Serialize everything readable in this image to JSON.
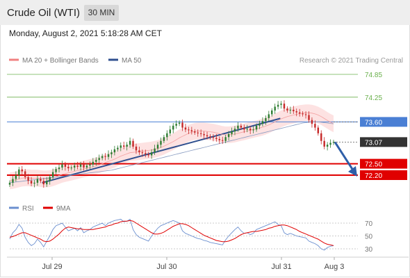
{
  "header": {
    "title": "Crude Oil (WTI)",
    "timeframe": "30 MIN"
  },
  "timestamp": "Monday, August 2, 2021 5:18:28 AM CET",
  "legend": {
    "ma20_label": "MA 20 + Bollinger Bands",
    "ma50_label": "MA 50",
    "ma20_color": "#f08080",
    "ma50_color": "#2f4f8f"
  },
  "credit": "Research © 2021 Trading Central",
  "rsi_legend": {
    "rsi_label": "RSI",
    "ma9_label": "9MA",
    "rsi_color": "#6b8fcf",
    "ma9_color": "#e00000"
  },
  "colors": {
    "resistance": "#6ab04c",
    "support": "#e00000",
    "pivot": "#4a7fd4",
    "price_box": "#333333",
    "up_candle": "#2e7d32",
    "down_candle": "#c62828"
  },
  "chart_data": [
    {
      "type": "candlestick",
      "title": "Crude Oil (WTI)",
      "timeframe": "30 MIN",
      "x_tick_labels": [
        "Jul 29",
        "Jul 30",
        "Jul 31",
        "Aug 3"
      ],
      "ylim": [
        71.9,
        75.05
      ],
      "last_price": 73.07,
      "levels": [
        {
          "value": 74.85,
          "kind": "resistance",
          "label": "74.85"
        },
        {
          "value": 74.25,
          "kind": "resistance",
          "label": "74.25"
        },
        {
          "value": 73.6,
          "kind": "pivot",
          "label": "73.60"
        },
        {
          "value": 73.07,
          "kind": "last",
          "label": "73.07"
        },
        {
          "value": 72.5,
          "kind": "support",
          "label": "72.50"
        },
        {
          "value": 72.2,
          "kind": "support",
          "label": "72.20"
        }
      ],
      "close": [
        72.0,
        72.1,
        72.2,
        72.35,
        72.3,
        72.15,
        72.05,
        71.98,
        72.0,
        72.1,
        72.05,
        71.96,
        72.05,
        72.15,
        72.28,
        72.36,
        72.4,
        72.48,
        72.42,
        72.38,
        72.4,
        72.45,
        72.42,
        72.48,
        72.4,
        72.45,
        72.48,
        72.55,
        72.6,
        72.65,
        72.7,
        72.68,
        72.75,
        72.8,
        72.88,
        72.92,
        72.98,
        72.95,
        73.0,
        73.1,
        72.95,
        72.85,
        72.8,
        72.78,
        72.75,
        72.72,
        72.8,
        72.9,
        73.0,
        73.1,
        73.2,
        73.3,
        73.4,
        73.5,
        73.55,
        73.58,
        73.45,
        73.4,
        73.38,
        73.35,
        73.32,
        73.3,
        73.28,
        73.25,
        73.22,
        73.2,
        73.18,
        73.15,
        73.12,
        73.1,
        73.2,
        73.28,
        73.35,
        73.42,
        73.5,
        73.45,
        73.4,
        73.42,
        73.38,
        73.4,
        73.5,
        73.55,
        73.62,
        73.7,
        73.8,
        73.9,
        74.0,
        74.05,
        74.08,
        73.95,
        73.9,
        73.92,
        73.88,
        73.85,
        73.82,
        73.8,
        73.78,
        73.65,
        73.55,
        73.45,
        73.3,
        73.1,
        72.95,
        73.0,
        73.05,
        73.07
      ],
      "series": [
        {
          "name": "MA 20",
          "values": [
            72.05,
            72.06,
            72.08,
            72.1,
            72.12,
            72.13,
            72.13,
            72.12,
            72.12,
            72.12,
            72.11,
            72.1,
            72.1,
            72.11,
            72.13,
            72.16,
            72.19,
            72.22,
            72.24,
            72.26,
            72.28,
            72.3,
            72.32,
            72.34,
            72.36,
            72.38,
            72.4,
            72.42,
            72.44,
            72.47,
            72.5,
            72.53,
            72.56,
            72.59,
            72.62,
            72.66,
            72.7,
            72.73,
            72.76,
            72.79,
            72.8,
            72.81,
            72.82,
            72.83,
            72.84,
            72.85,
            72.86,
            72.88,
            72.9,
            72.93,
            72.96,
            73.0,
            73.04,
            73.08,
            73.13,
            73.18,
            73.22,
            73.26,
            73.3,
            73.33,
            73.35,
            73.36,
            73.36,
            73.36,
            73.35,
            73.34,
            73.33,
            73.31,
            73.29,
            73.27,
            73.26,
            73.26,
            73.27,
            73.28,
            73.3,
            73.32,
            73.34,
            73.36,
            73.38,
            73.4,
            73.42,
            73.44,
            73.46,
            73.49,
            73.52,
            73.56,
            73.6,
            73.64,
            73.68,
            73.71,
            73.74,
            73.76,
            73.78,
            73.8,
            73.82,
            73.83,
            73.84,
            73.84,
            73.83,
            73.81,
            73.78,
            73.74,
            73.69,
            73.64,
            73.59,
            73.55
          ]
        },
        {
          "name": "MA 50",
          "values": [
            72.0,
            72.01,
            72.02,
            72.03,
            72.04,
            72.05,
            72.06,
            72.07,
            72.08,
            72.09,
            72.1,
            72.11,
            72.12,
            72.13,
            72.14,
            72.15,
            72.16,
            72.17,
            72.18,
            72.19,
            72.2,
            72.21,
            72.22,
            72.23,
            72.24,
            72.25,
            72.26,
            72.27,
            72.28,
            72.29,
            72.3,
            72.31,
            72.32,
            72.33,
            72.35,
            72.37,
            72.39,
            72.41,
            72.43,
            72.45,
            72.47,
            72.49,
            72.51,
            72.53,
            72.55,
            72.57,
            72.59,
            72.61,
            72.63,
            72.65,
            72.67,
            72.69,
            72.71,
            72.73,
            72.75,
            72.77,
            72.79,
            72.81,
            72.83,
            72.85,
            72.87,
            72.89,
            72.91,
            72.93,
            72.95,
            72.97,
            72.99,
            73.01,
            73.03,
            73.05,
            73.07,
            73.09,
            73.11,
            73.13,
            73.15,
            73.17,
            73.19,
            73.21,
            73.23,
            73.25,
            73.27,
            73.29,
            73.31,
            73.33,
            73.35,
            73.37,
            73.39,
            73.41,
            73.43,
            73.45,
            73.47,
            73.49,
            73.51,
            73.53,
            73.55,
            73.57,
            73.58,
            73.59,
            73.6,
            73.6,
            73.6,
            73.59,
            73.58,
            73.57,
            73.56,
            73.55
          ]
        }
      ],
      "trendline": {
        "from": [
          72.0,
          0.1
        ],
        "to": [
          73.6,
          0.9
        ]
      },
      "projection": {
        "from": 73.07,
        "to": 72.2
      }
    },
    {
      "type": "line",
      "title": "RSI",
      "y_tick_labels": [
        "70",
        "50",
        "30"
      ],
      "ylim": [
        20,
        80
      ],
      "series": [
        {
          "name": "RSI",
          "values": [
            45,
            55,
            60,
            68,
            62,
            48,
            40,
            35,
            38,
            45,
            40,
            33,
            42,
            50,
            60,
            66,
            68,
            70,
            64,
            58,
            60,
            62,
            58,
            63,
            55,
            58,
            60,
            64,
            66,
            68,
            70,
            66,
            70,
            72,
            74,
            75,
            76,
            72,
            73,
            76,
            60,
            52,
            48,
            46,
            44,
            42,
            50,
            56,
            62,
            66,
            68,
            70,
            72,
            74,
            72,
            70,
            58,
            54,
            52,
            50,
            48,
            46,
            45,
            43,
            42,
            40,
            39,
            38,
            37,
            36,
            44,
            50,
            55,
            60,
            64,
            58,
            54,
            55,
            52,
            54,
            60,
            62,
            64,
            66,
            68,
            70,
            72,
            68,
            66,
            55,
            52,
            54,
            52,
            50,
            49,
            48,
            47,
            42,
            40,
            38,
            35,
            30,
            28,
            32,
            34,
            35
          ]
        },
        {
          "name": "9MA",
          "values": [
            48,
            49,
            51,
            53,
            55,
            55,
            53,
            51,
            49,
            47,
            45,
            42,
            41,
            42,
            45,
            49,
            53,
            58,
            62,
            64,
            63,
            62,
            61,
            61,
            60,
            60,
            60,
            60,
            61,
            62,
            63,
            64,
            66,
            67,
            69,
            70,
            72,
            73,
            73,
            74,
            73,
            70,
            67,
            64,
            61,
            58,
            55,
            53,
            53,
            54,
            56,
            59,
            62,
            65,
            67,
            69,
            69,
            68,
            66,
            63,
            60,
            57,
            54,
            51,
            49,
            47,
            45,
            43,
            42,
            41,
            41,
            42,
            44,
            46,
            49,
            52,
            54,
            55,
            56,
            57,
            57,
            58,
            59,
            60,
            62,
            63,
            65,
            66,
            67,
            67,
            66,
            64,
            62,
            60,
            57,
            55,
            53,
            51,
            49,
            47,
            45,
            42,
            39,
            37,
            36,
            35
          ]
        }
      ]
    }
  ]
}
